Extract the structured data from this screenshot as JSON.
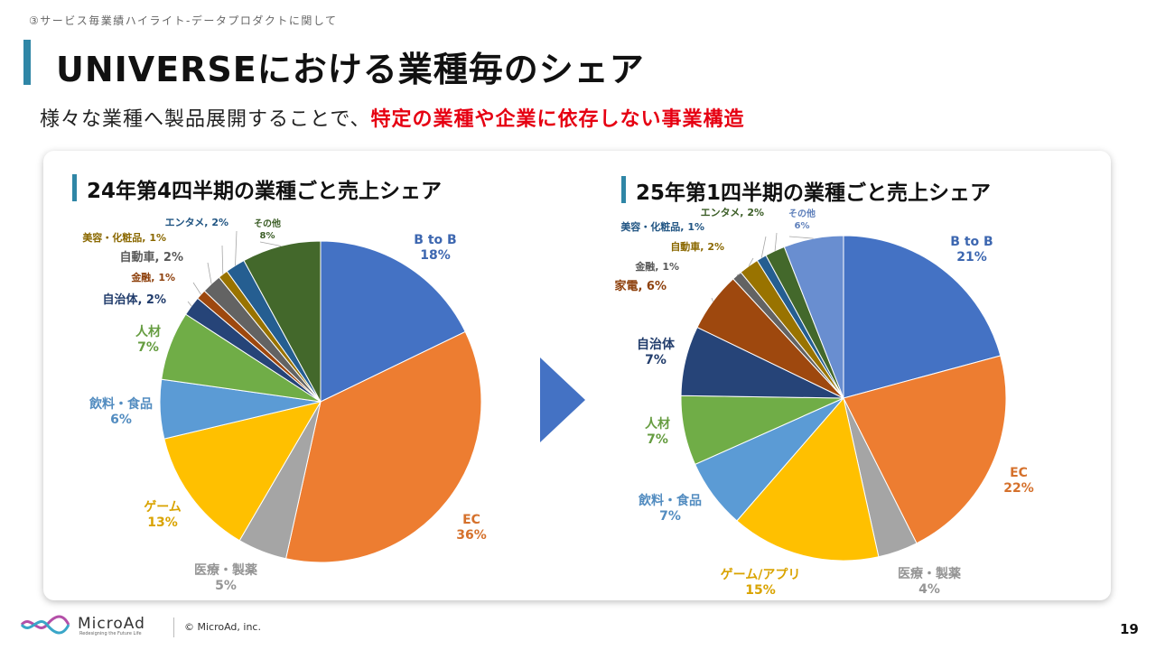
{
  "header": {
    "breadcrumb": "③サービス毎業績ハイライト-データプロダクトに関して",
    "title": "UNIVERSEにおける業種毎のシェア",
    "subtitle_plain": "様々な業種へ製品展開することで、",
    "subtitle_highlight": "特定の業種や企業に依存しない事業構造"
  },
  "chart_data": [
    {
      "type": "pie",
      "title": "24年第4四半期の業種ごと売上シェア",
      "slices": [
        {
          "label": "B to B",
          "value": 18,
          "pct": "18%",
          "color": "#4472c4"
        },
        {
          "label": "EC",
          "value": 36,
          "pct": "36%",
          "color": "#ed7d31"
        },
        {
          "label": "医療・製薬",
          "value": 5,
          "pct": "5%",
          "color": "#a5a5a5"
        },
        {
          "label": "ゲーム",
          "value": 13,
          "pct": "13%",
          "color": "#ffc000"
        },
        {
          "label": "飲料・食品",
          "value": 6,
          "pct": "6%",
          "color": "#5b9bd5"
        },
        {
          "label": "人材",
          "value": 7,
          "pct": "7%",
          "color": "#70ad47"
        },
        {
          "label": "自治体",
          "value": 2,
          "pct": "2%",
          "color": "#264478"
        },
        {
          "label": "金融",
          "value": 1,
          "pct": "1%",
          "color": "#9e480e"
        },
        {
          "label": "自動車",
          "value": 2,
          "pct": "2%",
          "color": "#636363"
        },
        {
          "label": "美容・化粧品",
          "value": 1,
          "pct": "1%",
          "color": "#997300"
        },
        {
          "label": "エンタメ",
          "value": 2,
          "pct": "2%",
          "color": "#255e91"
        },
        {
          "label": "その他",
          "value": 8,
          "pct": "8%",
          "color": "#43682b"
        }
      ]
    },
    {
      "type": "pie",
      "title": "25年第1四半期の業種ごと売上シェア",
      "slices": [
        {
          "label": "B to B",
          "value": 21,
          "pct": "21%",
          "color": "#4472c4"
        },
        {
          "label": "EC",
          "value": 22,
          "pct": "22%",
          "color": "#ed7d31"
        },
        {
          "label": "医療・製薬",
          "value": 4,
          "pct": "4%",
          "color": "#a5a5a5"
        },
        {
          "label": "ゲーム/アプリ",
          "value": 15,
          "pct": "15%",
          "color": "#ffc000"
        },
        {
          "label": "飲料・食品",
          "value": 7,
          "pct": "7%",
          "color": "#5b9bd5"
        },
        {
          "label": "人材",
          "value": 7,
          "pct": "7%",
          "color": "#70ad47"
        },
        {
          "label": "自治体",
          "value": 7,
          "pct": "7%",
          "color": "#264478"
        },
        {
          "label": "家電",
          "value": 6,
          "pct": "6%",
          "color": "#9e480e"
        },
        {
          "label": "金融",
          "value": 1,
          "pct": "1%",
          "color": "#636363"
        },
        {
          "label": "自動車",
          "value": 2,
          "pct": "2%",
          "color": "#997300"
        },
        {
          "label": "美容・化粧品",
          "value": 1,
          "pct": "1%",
          "color": "#255e91"
        },
        {
          "label": "エンタメ",
          "value": 2,
          "pct": "2%",
          "color": "#43682b"
        },
        {
          "label": "その他",
          "value": 6,
          "pct": "6%",
          "color": "#698ed0"
        }
      ]
    }
  ],
  "footer": {
    "brand": "MicroAd",
    "tagline": "Redesigning the Future Life",
    "copyright": "© MicroAd, inc.",
    "page_number": "19"
  }
}
